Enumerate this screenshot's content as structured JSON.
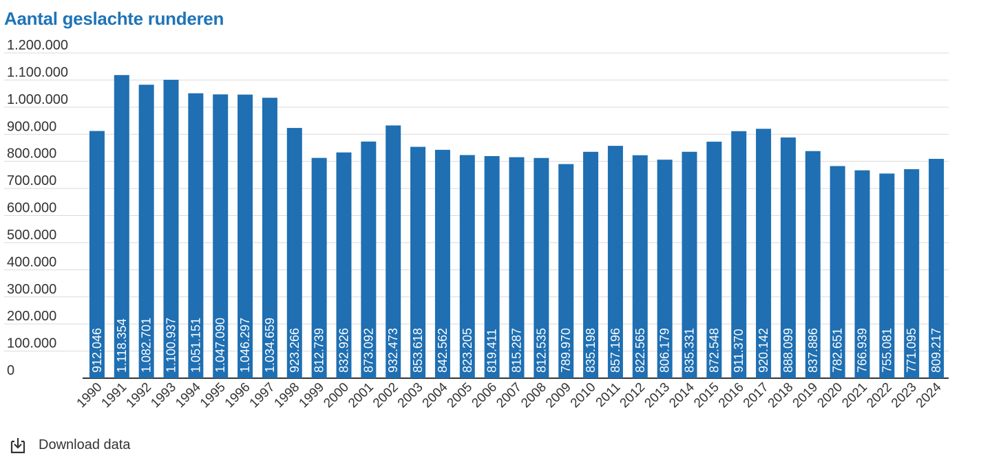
{
  "chart_data": {
    "type": "bar",
    "title": "Aantal geslachte runderen",
    "categories": [
      "1990",
      "1991",
      "1992",
      "1993",
      "1994",
      "1995",
      "1996",
      "1997",
      "1998",
      "1999",
      "2000",
      "2001",
      "2002",
      "2003",
      "2004",
      "2005",
      "2006",
      "2007",
      "2008",
      "2009",
      "2010",
      "2011",
      "2012",
      "2013",
      "2014",
      "2015",
      "2016",
      "2017",
      "2018",
      "2019",
      "2020",
      "2021",
      "2022",
      "2023",
      "2024"
    ],
    "values": [
      912046,
      1118354,
      1082701,
      1100937,
      1051151,
      1047090,
      1046297,
      1034659,
      923266,
      812739,
      832926,
      873092,
      932473,
      853618,
      842562,
      823205,
      819411,
      815287,
      812535,
      789970,
      835198,
      857196,
      822565,
      806179,
      835331,
      872548,
      911370,
      920142,
      888099,
      837886,
      782651,
      766939,
      755081,
      771095,
      809217
    ],
    "value_labels": [
      "912.046",
      "1.118.354",
      "1.082.701",
      "1.100.937",
      "1.051.151",
      "1.047.090",
      "1.046.297",
      "1.034.659",
      "923.266",
      "812.739",
      "832.926",
      "873.092",
      "932.473",
      "853.618",
      "842.562",
      "823.205",
      "819.411",
      "815.287",
      "812.535",
      "789.970",
      "835.198",
      "857.196",
      "822.565",
      "806.179",
      "835.331",
      "872.548",
      "911.370",
      "920.142",
      "888.099",
      "837.886",
      "782.651",
      "766.939",
      "755.081",
      "771.095",
      "809.217"
    ],
    "ylim": [
      0,
      1200000
    ],
    "yticks": [
      "0",
      "100.000",
      "200.000",
      "300.000",
      "400.000",
      "500.000",
      "600.000",
      "700.000",
      "800.000",
      "900.000",
      "1.000.000",
      "1.100.000",
      "1.200.000"
    ],
    "xlabel": "",
    "ylabel": "",
    "bar_color": "#1f6fb2",
    "grid": true
  },
  "download": {
    "label": "Download data",
    "icon": "download-icon"
  }
}
